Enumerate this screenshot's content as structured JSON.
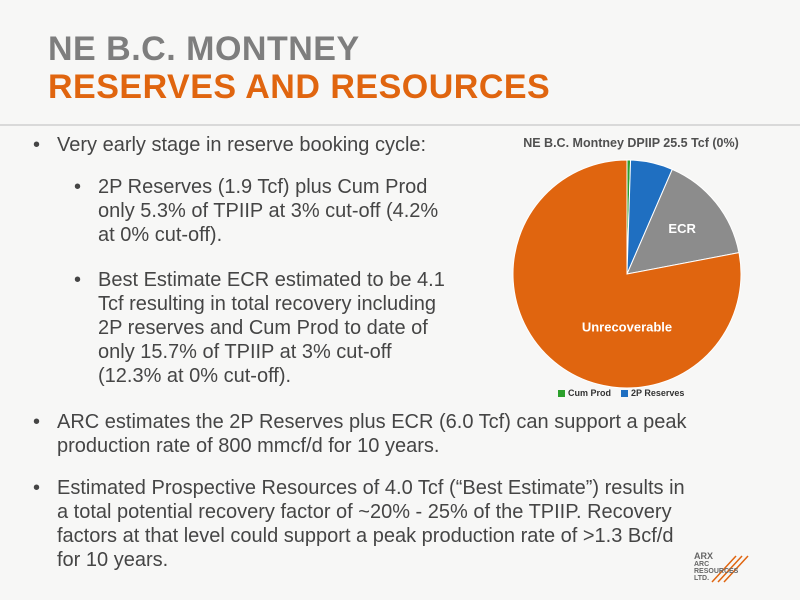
{
  "title": {
    "line1": "NE B.C. MONTNEY",
    "line2": "RESERVES AND RESOURCES"
  },
  "bullets": [
    {
      "text": "Very early stage in reserve booking cycle:"
    },
    {
      "text": "2P Reserves (1.9 Tcf) plus Cum Prod\nonly 5.3% of TPIIP at 3% cut-off (4.2%\nat 0% cut-off)."
    },
    {
      "text": "Best Estimate ECR estimated to be 4.1\nTcf resulting in total recovery including\n2P reserves and Cum Prod to date of\nonly 15.7% of TPIIP at 3% cut-off\n(12.3% at 0% cut-off)."
    },
    {
      "text": "ARC estimates the 2P Reserves plus ECR (6.0 Tcf) can support a peak\nproduction rate of 800 mmcf/d for 10 years."
    },
    {
      "text": "Estimated Prospective Resources of 4.0 Tcf (“Best Estimate”) results in\na total potential recovery factor of ~20% - 25% of the TPIIP.  Recovery\nfactors at that level could support a peak production rate of >1.3 Bcf/d\nfor 10 years."
    }
  ],
  "bullet_glyph": "•",
  "chart_data": {
    "type": "pie",
    "title": "NE B.C. Montney DPIIP 25.5 Tcf (0%)",
    "slices": [
      {
        "name": "Cum Prod",
        "value": 0.5,
        "color": "#2ca02c",
        "label": ""
      },
      {
        "name": "2P Reserves",
        "value": 6.0,
        "color": "#1f6fc1",
        "label": ""
      },
      {
        "name": "ECR",
        "value": 15.5,
        "color": "#8c8c8c",
        "label": "ECR"
      },
      {
        "name": "Unrecoverable",
        "value": 78.0,
        "color": "#e0650f",
        "label": "Unrecoverable"
      }
    ],
    "legend": [
      "Cum Prod",
      "2P Reserves"
    ],
    "legend_position": "bottom"
  },
  "logo": {
    "line1": "ARX",
    "line2": "ARC",
    "line3": "RESOURCES",
    "line4": "LTD."
  }
}
